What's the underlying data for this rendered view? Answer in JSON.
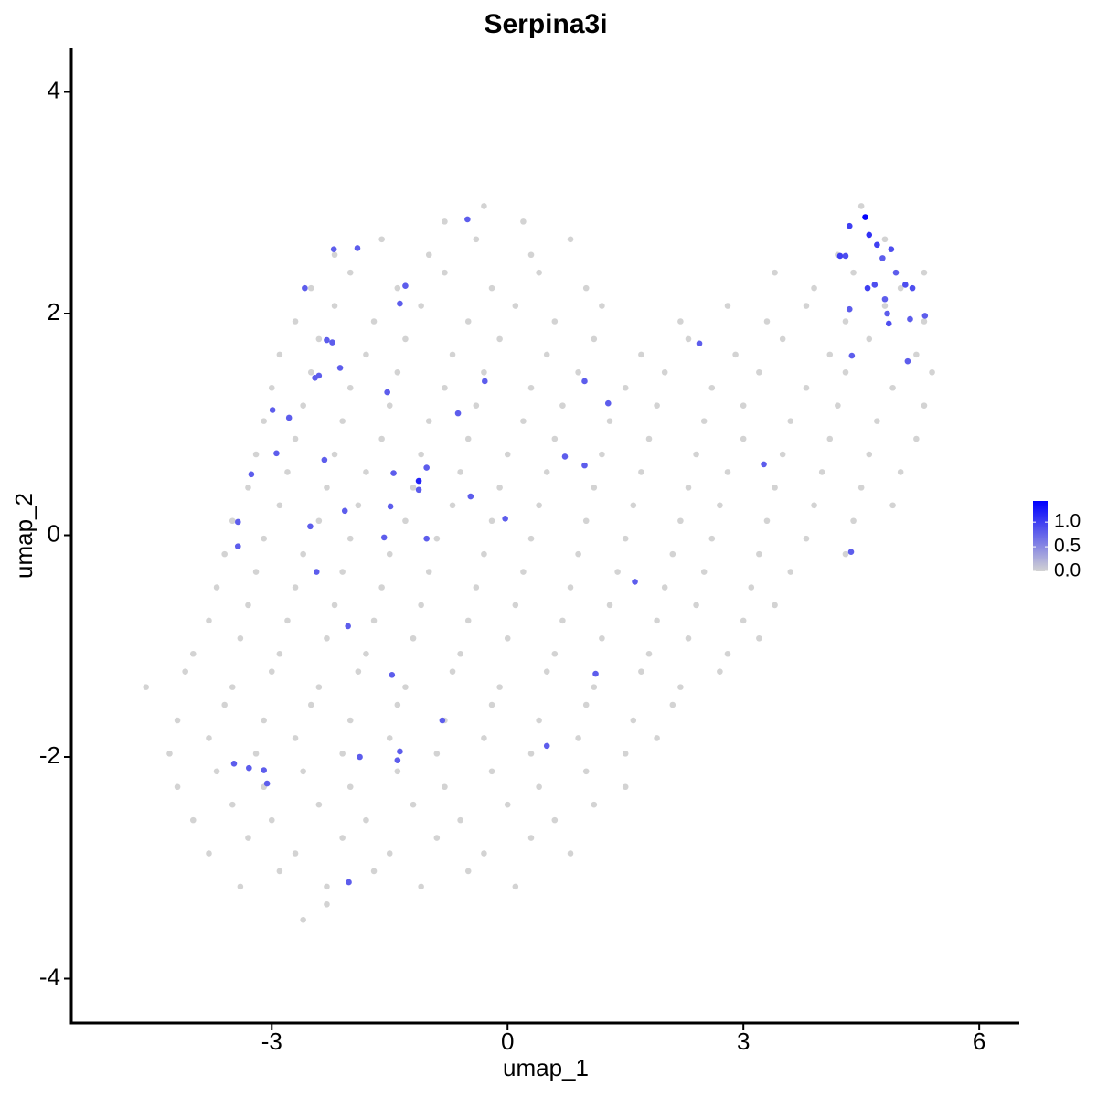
{
  "chart_data": {
    "type": "scatter",
    "title": "Serpina3i",
    "x_label": "umap_1",
    "y_label": "umap_2",
    "xlim": [
      -5.55,
      6.51
    ],
    "xticks": [
      -3,
      0,
      3,
      6
    ],
    "ylim": [
      -4.4,
      4.4
    ],
    "yticks": [
      -4,
      -2,
      0,
      2,
      4
    ],
    "colorbar": {
      "lim": [
        0,
        1.43
      ],
      "ticks": [
        {
          "value": 0,
          "label": "0.0"
        },
        {
          "value": 0.5,
          "label": "0.5"
        },
        {
          "value": 1,
          "label": "1.0"
        }
      ],
      "colors": [
        "#d3d3d3",
        "#0000ff"
      ]
    },
    "x": [
      -0.8,
      -0.3,
      0.2,
      4.5,
      -2.2,
      -1.6,
      -1.0,
      -0.4,
      0.3,
      0.8,
      4.2,
      4.8,
      -2.5,
      -2.0,
      -1.4,
      -0.8,
      -0.2,
      0.4,
      1.0,
      3.4,
      3.9,
      4.4,
      5.0,
      5.3,
      -2.7,
      -2.2,
      -1.7,
      -1.1,
      -0.5,
      0.1,
      0.6,
      1.2,
      2.2,
      2.8,
      3.3,
      3.8,
      4.3,
      4.8,
      5.3,
      -2.9,
      -2.4,
      -1.8,
      -1.3,
      -0.7,
      -0.1,
      0.5,
      1.1,
      1.7,
      2.3,
      2.9,
      3.5,
      4.1,
      4.6,
      5.2,
      -3.0,
      -2.5,
      -2.0,
      -1.4,
      -0.8,
      -0.3,
      0.3,
      0.9,
      1.5,
      2.0,
      2.6,
      3.2,
      3.8,
      4.3,
      4.9,
      5.4,
      -3.1,
      -2.6,
      -2.1,
      -1.5,
      -1.0,
      -0.4,
      0.2,
      0.7,
      1.3,
      1.9,
      2.5,
      3.0,
      3.6,
      4.2,
      4.7,
      5.3,
      -3.2,
      -2.7,
      -2.2,
      -1.6,
      -1.1,
      -0.5,
      0.0,
      0.6,
      1.2,
      1.8,
      2.4,
      3.0,
      3.5,
      4.1,
      4.6,
      5.2,
      -3.3,
      -2.8,
      -2.3,
      -1.8,
      -1.2,
      -0.6,
      -0.1,
      0.5,
      1.1,
      1.7,
      2.3,
      2.8,
      3.4,
      4.0,
      4.5,
      5.0,
      -3.5,
      -2.9,
      -2.4,
      -1.9,
      -1.3,
      -0.7,
      -0.2,
      0.4,
      1.0,
      1.6,
      2.2,
      2.7,
      3.3,
      3.9,
      4.4,
      4.9,
      -3.6,
      -3.1,
      -2.6,
      -2.0,
      -1.5,
      -0.9,
      -0.3,
      0.3,
      0.9,
      1.5,
      2.1,
      2.6,
      3.2,
      3.8,
      4.3,
      -3.7,
      -3.2,
      -2.7,
      -2.1,
      -1.6,
      -1.0,
      -0.4,
      0.2,
      0.8,
      1.4,
      2.0,
      2.5,
      3.1,
      3.6,
      -3.8,
      -3.3,
      -2.8,
      -2.2,
      -1.7,
      -1.1,
      -0.5,
      0.1,
      0.7,
      1.3,
      1.9,
      2.4,
      3.0,
      3.4,
      -4.0,
      -3.4,
      -2.9,
      -2.3,
      -1.8,
      -1.2,
      -0.6,
      0.0,
      0.6,
      1.2,
      1.8,
      2.3,
      2.8,
      3.2,
      -4.6,
      -4.1,
      -3.5,
      -3.0,
      -2.4,
      -1.9,
      -1.3,
      -0.7,
      -0.1,
      0.5,
      1.1,
      1.7,
      2.2,
      2.7,
      -4.2,
      -3.6,
      -3.1,
      -2.5,
      -2.0,
      -1.4,
      -0.8,
      -0.2,
      0.4,
      1.0,
      1.6,
      2.1,
      -4.3,
      -3.8,
      -3.2,
      -2.7,
      -2.1,
      -1.5,
      -0.9,
      -0.3,
      0.3,
      0.9,
      1.5,
      1.9,
      -4.2,
      -3.7,
      -3.1,
      -2.6,
      -2.0,
      -1.4,
      -0.8,
      -0.2,
      0.4,
      1.0,
      1.5,
      -4.0,
      -3.5,
      -3.0,
      -2.4,
      -1.8,
      -1.2,
      -0.6,
      0.0,
      0.6,
      1.1,
      -3.8,
      -3.3,
      -2.7,
      -2.1,
      -1.5,
      -0.9,
      -0.3,
      0.3,
      0.8,
      -3.4,
      -2.9,
      -2.3,
      -1.7,
      -1.1,
      -0.5,
      0.1,
      -2.6,
      -2.3,
      4.55,
      4.35,
      4.6,
      4.7,
      4.88,
      4.23,
      4.3,
      4.77,
      4.67,
      4.58,
      4.94,
      5.06,
      5.15,
      4.8,
      4.35,
      4.83,
      4.85,
      5.31,
      5.12,
      5.09,
      4.38,
      4.37,
      -0.51,
      -2.21,
      -1.91,
      -2.58,
      -1.3,
      -1.37,
      -2.3,
      -2.23,
      -2.13,
      -2.4,
      -2.45,
      -1.53,
      -0.29,
      0.98,
      1.28,
      -2.99,
      -2.78,
      -0.63,
      -2.33,
      -2.94,
      -3.26,
      -1.45,
      -1.13,
      -1.13,
      -1.03,
      0.73,
      0.98,
      3.26,
      -0.47,
      -1.49,
      -2.07,
      -0.03,
      -3.43,
      -3.43,
      -2.51,
      -1.57,
      -1.03,
      -2.43,
      -2.03,
      1.62,
      1.12,
      -1.47,
      -0.83,
      0.5,
      -1.37,
      -1.4,
      -1.88,
      -3.48,
      -3.1,
      -3.29,
      -3.06,
      -2.02,
      2.44
    ],
    "y": [
      2.83,
      2.97,
      2.83,
      2.97,
      2.53,
      2.67,
      2.53,
      2.67,
      2.53,
      2.67,
      2.53,
      2.67,
      2.23,
      2.37,
      2.23,
      2.37,
      2.23,
      2.37,
      2.23,
      2.37,
      2.23,
      2.37,
      2.23,
      2.37,
      1.93,
      2.07,
      1.93,
      2.07,
      1.93,
      2.07,
      1.93,
      2.07,
      1.93,
      2.07,
      1.93,
      2.07,
      1.93,
      2.07,
      1.93,
      1.63,
      1.77,
      1.63,
      1.77,
      1.63,
      1.77,
      1.63,
      1.77,
      1.63,
      1.77,
      1.63,
      1.77,
      1.63,
      1.77,
      1.63,
      1.33,
      1.47,
      1.33,
      1.47,
      1.33,
      1.47,
      1.33,
      1.47,
      1.33,
      1.47,
      1.33,
      1.47,
      1.33,
      1.47,
      1.33,
      1.47,
      1.03,
      1.17,
      1.03,
      1.17,
      1.03,
      1.17,
      1.03,
      1.17,
      1.03,
      1.17,
      1.03,
      1.17,
      1.03,
      1.17,
      1.03,
      1.17,
      0.73,
      0.87,
      0.73,
      0.87,
      0.73,
      0.87,
      0.73,
      0.87,
      0.73,
      0.87,
      0.73,
      0.87,
      0.73,
      0.87,
      0.73,
      0.87,
      0.43,
      0.57,
      0.43,
      0.57,
      0.43,
      0.57,
      0.43,
      0.57,
      0.43,
      0.57,
      0.43,
      0.57,
      0.43,
      0.57,
      0.43,
      0.57,
      0.13,
      0.27,
      0.13,
      0.27,
      0.13,
      0.27,
      0.13,
      0.27,
      0.13,
      0.27,
      0.13,
      0.27,
      0.13,
      0.27,
      0.13,
      0.27,
      -0.17,
      -0.03,
      -0.17,
      -0.03,
      -0.17,
      -0.03,
      -0.17,
      -0.03,
      -0.17,
      -0.03,
      -0.17,
      -0.03,
      -0.17,
      -0.03,
      -0.17,
      -0.47,
      -0.33,
      -0.47,
      -0.33,
      -0.47,
      -0.33,
      -0.47,
      -0.33,
      -0.47,
      -0.33,
      -0.47,
      -0.33,
      -0.47,
      -0.33,
      -0.77,
      -0.63,
      -0.77,
      -0.63,
      -0.77,
      -0.63,
      -0.77,
      -0.63,
      -0.77,
      -0.63,
      -0.77,
      -0.63,
      -0.77,
      -0.63,
      -1.07,
      -0.93,
      -1.07,
      -0.93,
      -1.07,
      -0.93,
      -1.07,
      -0.93,
      -1.07,
      -0.93,
      -1.07,
      -0.93,
      -1.07,
      -0.93,
      -1.37,
      -1.23,
      -1.37,
      -1.23,
      -1.37,
      -1.23,
      -1.37,
      -1.23,
      -1.37,
      -1.23,
      -1.37,
      -1.23,
      -1.37,
      -1.23,
      -1.67,
      -1.53,
      -1.67,
      -1.53,
      -1.67,
      -1.53,
      -1.67,
      -1.53,
      -1.67,
      -1.53,
      -1.67,
      -1.53,
      -1.97,
      -1.83,
      -1.97,
      -1.83,
      -1.97,
      -1.83,
      -1.97,
      -1.83,
      -1.97,
      -1.83,
      -1.97,
      -1.83,
      -2.27,
      -2.13,
      -2.27,
      -2.13,
      -2.27,
      -2.13,
      -2.27,
      -2.13,
      -2.27,
      -2.13,
      -2.27,
      -2.57,
      -2.43,
      -2.57,
      -2.43,
      -2.57,
      -2.43,
      -2.57,
      -2.43,
      -2.57,
      -2.43,
      -2.87,
      -2.73,
      -2.87,
      -2.73,
      -2.87,
      -2.73,
      -2.87,
      -2.73,
      -2.87,
      -3.17,
      -3.03,
      -3.17,
      -3.03,
      -3.17,
      -3.03,
      -3.17,
      -3.47,
      -3.33,
      2.87,
      2.79,
      2.71,
      2.62,
      2.58,
      2.52,
      2.52,
      2.5,
      2.26,
      2.23,
      2.37,
      2.26,
      2.23,
      2.13,
      2.04,
      2.0,
      1.91,
      1.98,
      1.95,
      1.57,
      1.62,
      -0.15,
      2.85,
      2.58,
      2.59,
      2.23,
      2.25,
      2.09,
      1.76,
      1.74,
      1.51,
      1.44,
      1.42,
      1.29,
      1.39,
      1.39,
      1.19,
      1.13,
      1.06,
      1.1,
      0.68,
      0.74,
      0.55,
      0.56,
      0.49,
      0.41,
      0.61,
      0.71,
      0.63,
      0.64,
      0.35,
      0.26,
      0.22,
      0.15,
      0.12,
      -0.1,
      0.08,
      -0.02,
      -0.03,
      -0.33,
      -0.82,
      -0.42,
      -1.25,
      -1.26,
      -1.67,
      -1.9,
      -1.95,
      -2.03,
      -2.0,
      -2.06,
      -2.12,
      -2.1,
      -2.24,
      -3.13,
      1.73
    ],
    "values": [
      0,
      0,
      0,
      0,
      0,
      0,
      0,
      0,
      0,
      0,
      0,
      0,
      0,
      0,
      0,
      0,
      0,
      0,
      0,
      0,
      0,
      0,
      0,
      0,
      0,
      0,
      0,
      0,
      0,
      0,
      0,
      0,
      0,
      0,
      0,
      0,
      0,
      0,
      0,
      0,
      0,
      0,
      0,
      0,
      0,
      0,
      0,
      0,
      0,
      0,
      0,
      0,
      0,
      0,
      0,
      0,
      0,
      0,
      0,
      0,
      0,
      0,
      0,
      0,
      0,
      0,
      0,
      0,
      0,
      0,
      0,
      0,
      0,
      0,
      0,
      0,
      0,
      0,
      0,
      0,
      0,
      0,
      0,
      0,
      0,
      0,
      0,
      0,
      0,
      0,
      0,
      0,
      0,
      0,
      0,
      0,
      0,
      0,
      0,
      0,
      0,
      0,
      0,
      0,
      0,
      0,
      0,
      0,
      0,
      0,
      0,
      0,
      0,
      0,
      0,
      0,
      0,
      0,
      0,
      0,
      0,
      0,
      0,
      0,
      0,
      0,
      0,
      0,
      0,
      0,
      0,
      0,
      0,
      0,
      0,
      0,
      0,
      0,
      0,
      0,
      0,
      0,
      0,
      0,
      0,
      0,
      0,
      0,
      0,
      0,
      0,
      0,
      0,
      0,
      0,
      0,
      0,
      0,
      0,
      0,
      0,
      0,
      0,
      0,
      0,
      0,
      0,
      0,
      0,
      0,
      0,
      0,
      0,
      0,
      0,
      0,
      0,
      0,
      0,
      0,
      0,
      0,
      0,
      0,
      0,
      0,
      0,
      0,
      0,
      0,
      0,
      0,
      0,
      0,
      0,
      0,
      0,
      0,
      0,
      0,
      0,
      0,
      0,
      0,
      0,
      0,
      0,
      0,
      0,
      0,
      0,
      0,
      0,
      0,
      0,
      0,
      0,
      0,
      0,
      0,
      0,
      0,
      0,
      0,
      0,
      0,
      0,
      0,
      0,
      0,
      0,
      0,
      0,
      0,
      0,
      0,
      0,
      0,
      0,
      0,
      0,
      0,
      0,
      0,
      0,
      0,
      0,
      0,
      0,
      0,
      0,
      0,
      0,
      0,
      0,
      0,
      0,
      0,
      0,
      0,
      0,
      0,
      0,
      0,
      0,
      0,
      0,
      0,
      1.4,
      1.0,
      1.1,
      1.0,
      0.9,
      1.0,
      0.9,
      0.8,
      0.9,
      1.0,
      0.8,
      0.9,
      0.9,
      0.8,
      0.8,
      0.8,
      0.9,
      0.8,
      0.8,
      0.8,
      0.8,
      0.8,
      0.8,
      0.8,
      0.8,
      0.8,
      0.8,
      0.8,
      0.8,
      0.8,
      0.8,
      0.8,
      0.8,
      0.8,
      0.8,
      0.8,
      0.8,
      0.8,
      0.8,
      0.8,
      0.8,
      0.8,
      0.8,
      0.8,
      1.2,
      0.8,
      0.8,
      0.8,
      0.8,
      0.8,
      0.8,
      0.8,
      0.8,
      0.8,
      0.8,
      0.8,
      0.8,
      0.8,
      0.8,
      0.8,
      0.8,
      0.8,
      0.8,
      0.8,
      0.8,
      0.8,
      0.8,
      0.8,
      0.8,
      0.8,
      0.8,
      0.8,
      0.8,
      0.8,
      0.8
    ]
  }
}
